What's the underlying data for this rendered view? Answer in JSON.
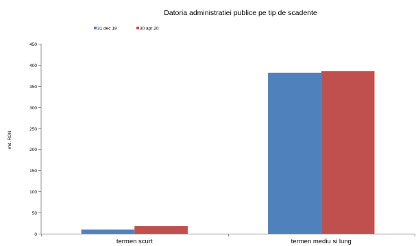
{
  "chart_data": {
    "type": "bar",
    "title": "Datoria administratiei publice  pe tip de scadente",
    "ylabel": "mld. RON",
    "xlabel": "",
    "categories": [
      "termen scurt",
      "termen mediu si lung"
    ],
    "series": [
      {
        "name": "31 dec 19",
        "values": [
          10,
          381
        ],
        "color": "#4f81bd"
      },
      {
        "name": "30 apr 20",
        "values": [
          18,
          385
        ],
        "color": "#c0504d"
      }
    ],
    "ylim": [
      0,
      450
    ],
    "yticks": [
      0,
      50,
      100,
      150,
      200,
      250,
      300,
      350,
      400,
      450
    ],
    "grid": false,
    "legend_position": "top-left"
  }
}
